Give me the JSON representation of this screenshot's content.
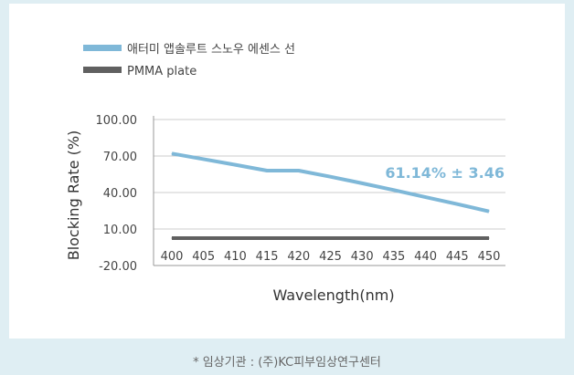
{
  "chart_data": {
    "type": "line",
    "title": "",
    "xlabel": "Wavelength(nm)",
    "ylabel": "Blocking Rate (%)",
    "x": [
      400,
      405,
      410,
      415,
      420,
      425,
      430,
      435,
      440,
      445,
      450
    ],
    "ylim": [
      -20,
      100
    ],
    "yticks": [
      "100.00",
      "70.00",
      "40.00",
      "10.00",
      "-20.00"
    ],
    "ytick_values": [
      100,
      70,
      40,
      10,
      -20
    ],
    "grid": "horizontal",
    "legend_position": "top-left",
    "series": [
      {
        "name": "애터미 앱솔루트 스노우 에센스 선",
        "color": "#7fb8d8",
        "values": [
          72,
          67.4,
          62.8,
          58,
          58,
          53,
          47.6,
          42,
          36.2,
          30.5,
          24.5
        ]
      },
      {
        "name": "PMMA plate",
        "color": "#606060",
        "values": [
          2.5,
          2.5,
          2.5,
          2.5,
          2.5,
          2.5,
          2.5,
          2.5,
          2.5,
          2.5,
          2.5
        ]
      }
    ],
    "annotation": "61.14% ± 3.46",
    "annotation_color": "#7fb8d8"
  },
  "footnote": "* 임상기관 : (주)KC피부임상연구센터"
}
